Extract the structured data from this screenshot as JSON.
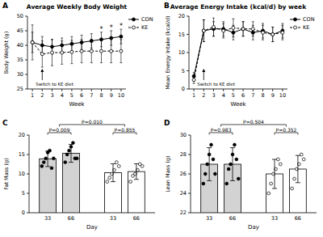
{
  "chart_data": [
    {
      "type": "line",
      "panel": "A",
      "title": "Average Weekly Body Weight",
      "x_label": "Week",
      "y_label": "Body Weight (g)",
      "x": [
        1,
        2,
        3,
        4,
        5,
        6,
        7,
        8,
        9,
        10
      ],
      "xlim": [
        0.5,
        10.5
      ],
      "xticks": [
        1,
        2,
        3,
        4,
        5,
        6,
        7,
        8,
        9,
        10
      ],
      "ylim": [
        25,
        50
      ],
      "yticks": [
        25,
        30,
        35,
        40,
        45,
        50
      ],
      "legend": "top-right",
      "series": [
        {
          "name": "CON",
          "color": "#000000",
          "marker": "circle",
          "line_style": "solid",
          "values": [
            41,
            40,
            39.5,
            40,
            40.5,
            41,
            41.5,
            42,
            42.5,
            43
          ],
          "errors": [
            3.5,
            3,
            2.5,
            2.5,
            2.5,
            2.5,
            2.5,
            2.5,
            2.5,
            2.5
          ]
        },
        {
          "name": "KE",
          "color": "#000000",
          "marker": "open-circle",
          "line_style": "dashed",
          "values": [
            41,
            37,
            37.5,
            37.5,
            37.7,
            38,
            38,
            38,
            38,
            38
          ],
          "errors": [
            6,
            4.5,
            4.5,
            4,
            4,
            4,
            4,
            4,
            4,
            4
          ]
        }
      ],
      "annotations": [
        {
          "text": "Switch to KE diet",
          "x": 2
        },
        {
          "text": "*",
          "x": 8
        },
        {
          "text": "*",
          "x": 9
        },
        {
          "text": "*",
          "x": 10
        }
      ]
    },
    {
      "type": "line",
      "panel": "B",
      "title": "Average Energy Intake (kcal/d) by week",
      "x_label": "Week",
      "y_label": "Mean Energy Intake (kcal/d)",
      "x": [
        1,
        2,
        3,
        4,
        5,
        6,
        7,
        8,
        9,
        10
      ],
      "xlim": [
        0.5,
        10.5
      ],
      "xticks": [
        1,
        2,
        3,
        4,
        5,
        6,
        7,
        8,
        9,
        10
      ],
      "ylim": [
        0,
        20
      ],
      "yticks": [
        0,
        5,
        10,
        15,
        20
      ],
      "legend": "top-right",
      "series": [
        {
          "name": "CON",
          "color": "#000000",
          "marker": "circle",
          "line_style": "solid",
          "values": [
            3.5,
            16,
            16.5,
            16.5,
            15.5,
            16.5,
            15.5,
            16,
            15,
            16
          ],
          "errors": [
            1,
            3,
            2,
            2,
            2,
            2,
            2,
            2,
            2,
            2
          ]
        },
        {
          "name": "KE",
          "color": "#000000",
          "marker": "open-circle",
          "line_style": "dashed",
          "values": [
            2.5,
            16,
            17,
            16,
            16.8,
            16.5,
            16.5,
            15.5,
            15,
            15.5
          ],
          "errors": [
            1,
            3,
            2.5,
            2,
            2.5,
            2,
            2,
            2,
            2,
            2
          ]
        }
      ],
      "annotations": [
        {
          "text": "Switch to KE diet",
          "x": 2
        }
      ]
    },
    {
      "type": "bar",
      "panel": "C",
      "x_label": "Day",
      "y_label": "Fat Mass (g)",
      "categories": [
        "33",
        "66"
      ],
      "ylim": [
        0,
        20
      ],
      "yticks": [
        0,
        5,
        10,
        15,
        20
      ],
      "series": [
        {
          "color": "#d3d3d3",
          "marker": "circle",
          "values": [
            13.9,
            15.3
          ],
          "errors": [
            2.0,
            2.3
          ],
          "points": [
            [
              12,
              13,
              14,
              15.5,
              16,
              11.5,
              14
            ],
            [
              13,
              15,
              16,
              17,
              18,
              14,
              14
            ]
          ]
        },
        {
          "color": "#ffffff",
          "marker": "open-circle",
          "values": [
            10.3,
            10.6
          ],
          "errors": [
            2.3,
            2.0
          ],
          "points": [
            [
              8,
              9,
              10,
              11,
              13,
              12
            ],
            [
              8,
              9.5,
              10,
              11,
              12.5,
              12
            ]
          ]
        }
      ],
      "annotations": [
        {
          "text": "P=0.010"
        },
        {
          "text": "P=0.009"
        },
        {
          "text": "P=0.855"
        }
      ]
    },
    {
      "type": "bar",
      "panel": "D",
      "x_label": "Day",
      "y_label": "Lean Mass (g)",
      "categories": [
        "33",
        "66"
      ],
      "ylim": [
        22,
        30
      ],
      "yticks": [
        22,
        24,
        26,
        28,
        30
      ],
      "series": [
        {
          "color": "#d3d3d3",
          "marker": "circle",
          "values": [
            27.0,
            27.0
          ],
          "errors": [
            1.7,
            1.7
          ],
          "points": [
            [
              25,
              26,
              27,
              28,
              29,
              27.5,
              26
            ],
            [
              25,
              26.5,
              27,
              28,
              29,
              27.5,
              25.5
            ]
          ]
        },
        {
          "color": "#ffffff",
          "marker": "open-circle",
          "values": [
            26.0,
            26.5
          ],
          "errors": [
            1.5,
            1.4
          ],
          "points": [
            [
              24,
              25,
              26,
              26.5,
              27.5,
              27
            ],
            [
              24.5,
              25.5,
              26.5,
              27,
              28,
              27.5
            ]
          ]
        }
      ],
      "annotations": [
        {
          "text": "P=0.504"
        },
        {
          "text": "P=0.983"
        },
        {
          "text": "P=0.352"
        }
      ]
    }
  ]
}
